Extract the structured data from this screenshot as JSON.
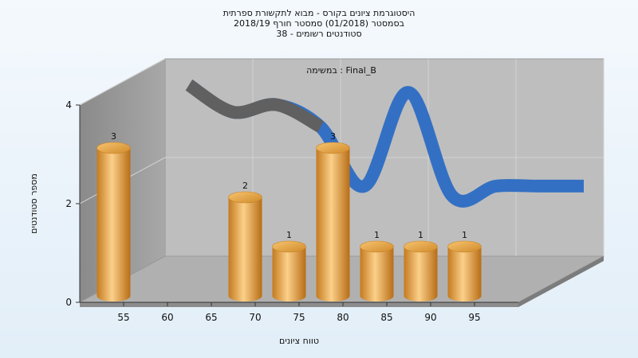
{
  "titles": [
    "היסטוגרמת ציונים בקורס - מבוא לתקשורת ספרתית",
    "בסמסטר  (01/2018)  סמסטר חורף 2018/19",
    "סטודנטים רשומים - 38"
  ],
  "colors": {
    "bar": "#e8a33c",
    "curve": "#3370c4",
    "curve_shadow": "#606060",
    "back_wall": "#bebebe",
    "side_wall": "#979797",
    "floor": "#b0b0b0"
  },
  "chart_data": {
    "type": "bar",
    "subtitle": "במשימה : Final_B",
    "xlabel": "טווח ציונים",
    "ylabel": "מספר סטודנטים",
    "x_ticks": [
      "55",
      "60",
      "65",
      "70",
      "75",
      "80",
      "85",
      "90",
      "95"
    ],
    "y_ticks": [
      "0",
      "2",
      "4"
    ],
    "ylim": [
      0,
      4
    ],
    "categories": [
      "55",
      "60",
      "65",
      "70",
      "75",
      "80",
      "85",
      "90",
      "95"
    ],
    "values": [
      3,
      0,
      0,
      2,
      1,
      3,
      1,
      1,
      1
    ],
    "bar_labels": [
      "3",
      "",
      "",
      "2",
      "1",
      "3",
      "1",
      "1",
      "1"
    ],
    "curve": {
      "x": [
        55,
        60,
        65,
        70,
        75,
        80,
        85,
        90,
        95,
        100
      ],
      "y": [
        3.6,
        3.05,
        3.2,
        2.75,
        1.55,
        3.45,
        1.35,
        1.55,
        1.55,
        1.55
      ]
    },
    "grid": true,
    "legend": "none"
  }
}
